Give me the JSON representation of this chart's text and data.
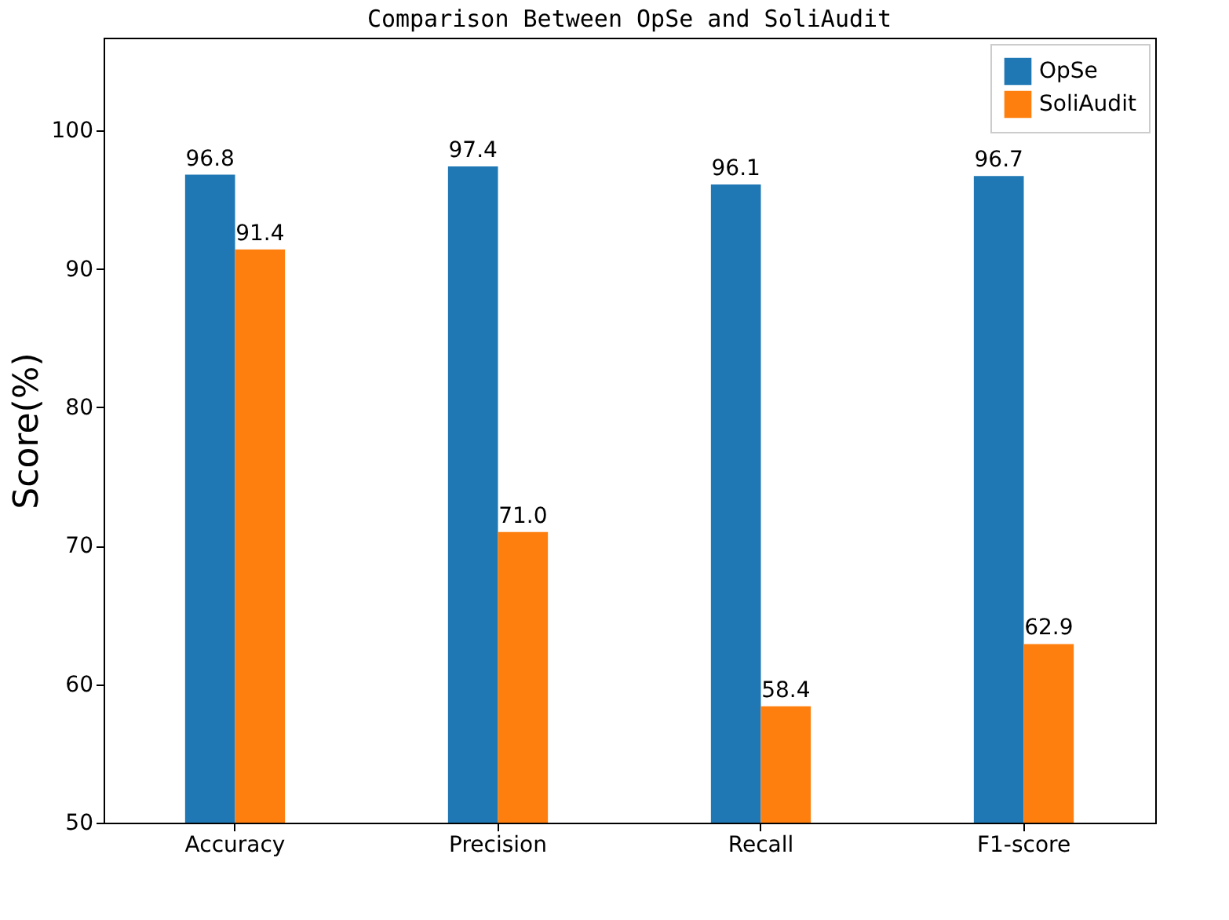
{
  "chart_data": {
    "type": "bar",
    "title": "Comparison Between OpSe and SoliAudit",
    "ylabel": "Score(%)",
    "categories": [
      "Accuracy",
      "Precision",
      "Recall",
      "F1-score"
    ],
    "series": [
      {
        "name": "OpSe",
        "color": "#1f77b4",
        "values": [
          96.8,
          97.4,
          96.1,
          96.7
        ],
        "value_labels": [
          "96.8",
          "97.4",
          "96.1",
          "96.7"
        ]
      },
      {
        "name": "SoliAudit",
        "color": "#ff7f0e",
        "values": [
          91.4,
          71.0,
          58.4,
          62.9
        ],
        "value_labels": [
          "91.4",
          "71.0",
          "58.4",
          "62.9"
        ]
      }
    ],
    "ylim": [
      50,
      106.7
    ],
    "yticks": [
      50,
      60,
      70,
      80,
      90,
      100
    ],
    "legend": "top right",
    "grid": false
  }
}
